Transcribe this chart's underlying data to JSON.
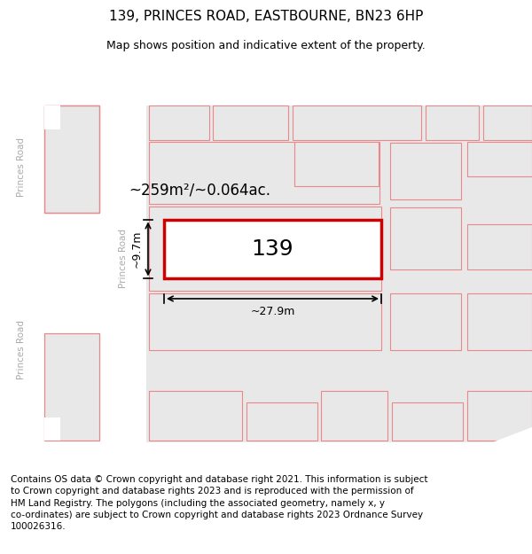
{
  "title": "139, PRINCES ROAD, EASTBOURNE, BN23 6HP",
  "subtitle": "Map shows position and indicative extent of the property.",
  "footer": "Contains OS data © Crown copyright and database right 2021. This information is subject\nto Crown copyright and database rights 2023 and is reproduced with the permission of\nHM Land Registry. The polygons (including the associated geometry, namely x, y\nco-ordinates) are subject to Crown copyright and database rights 2023 Ordnance Survey\n100026316.",
  "area_text": "~259m²/~0.064ac.",
  "number_text": "139",
  "width_text": "~27.9m",
  "height_text": "~9.7m",
  "road_label_left1": "Princes Road",
  "road_label_left2": "Princes Road",
  "road_label_mid": "Princes Road",
  "outline_pink": "#e8888a",
  "outline_red": "#cc0000",
  "fill_gray": "#e8e8e8",
  "fill_white": "#ffffff",
  "road_white": "#ffffff",
  "map_bg": "#e8e8e8",
  "title_fontsize": 11,
  "subtitle_fontsize": 9,
  "footer_fontsize": 7.5,
  "area_fontsize": 12,
  "number_fontsize": 18,
  "dim_fontsize": 9,
  "road_fontsize": 7.5
}
